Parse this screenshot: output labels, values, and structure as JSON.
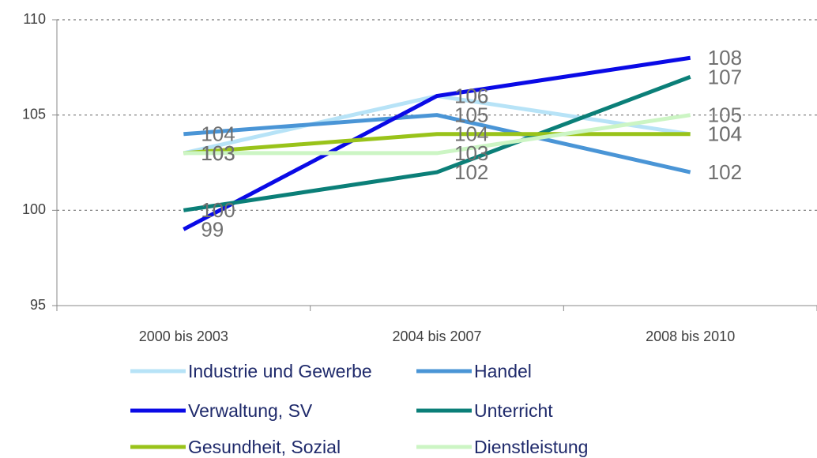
{
  "chart_data": {
    "type": "line",
    "categories": [
      "2000 bis 2003",
      "2004 bis 2007",
      "2008 bis 2010"
    ],
    "series": [
      {
        "name": "Industrie und Gewerbe",
        "color": "#b7e3f7",
        "values": [
          103,
          106,
          104
        ]
      },
      {
        "name": "Handel",
        "color": "#4a95d6",
        "values": [
          104,
          105,
          102
        ]
      },
      {
        "name": "Verwaltung, SV",
        "color": "#0a0ae6",
        "values": [
          99,
          106,
          108
        ]
      },
      {
        "name": "Unterricht",
        "color": "#0b7f78",
        "values": [
          100,
          102,
          107
        ]
      },
      {
        "name": "Gesundheit, Sozial",
        "color": "#99c31a",
        "values": [
          103,
          104,
          104
        ]
      },
      {
        "name": "Dienstleistung",
        "color": "#ccf5c4",
        "values": [
          103,
          103,
          105
        ]
      }
    ],
    "ylim": [
      95,
      110
    ],
    "yticks": [
      95,
      100,
      105,
      110
    ],
    "grid": true,
    "legend": "bottom"
  }
}
